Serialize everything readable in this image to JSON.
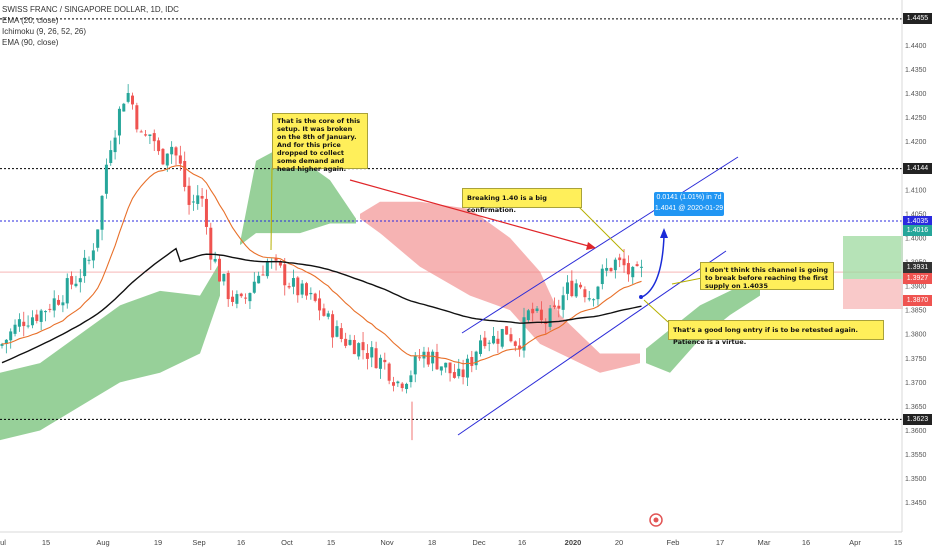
{
  "legend": {
    "title": "SWISS FRANC / SINGAPORE DOLLAR, 1D, IDC",
    "lines": [
      "EMA (20, close)",
      "Ichimoku (9, 26, 52, 26)",
      "EMA (90, close)"
    ]
  },
  "colors": {
    "up": "#26a69a",
    "down": "#ef5350",
    "ema20": "#e8702a",
    "ema90": "#111111",
    "cloud_bull": "#7dc47f",
    "cloud_bear": "#f4a0a0",
    "channel": "#2b2bd8",
    "note_bg": "#ffef5a",
    "supply": "#2a2adf"
  },
  "chart_data": {
    "type": "candlestick",
    "yrange": [
      1.341,
      1.4465
    ],
    "x_tick_labels": [
      "ul",
      "15",
      "Aug",
      "19",
      "Sep",
      "16",
      "Oct",
      "15",
      "Nov",
      "18",
      "Dec",
      "16",
      "2020",
      "20",
      "Feb",
      "17",
      "Mar",
      "16",
      "Apr",
      "15"
    ],
    "y_tick_labels": [
      "1.4455",
      "1.4400",
      "1.4350",
      "1.4300",
      "1.4250",
      "1.4200",
      "1.4150",
      "1.4100",
      "1.4050",
      "1.4000",
      "1.3950",
      "1.3900",
      "1.3850",
      "1.3800",
      "1.3750",
      "1.3700",
      "1.3650",
      "1.3600",
      "1.3550",
      "1.3500",
      "1.3450"
    ],
    "horizontal_levels": [
      {
        "price": 1.4455,
        "label": "1.4455",
        "style": "dotted",
        "color": "#000000"
      },
      {
        "price": 1.4144,
        "label": "1.4144",
        "style": "dotted",
        "color": "#000000"
      },
      {
        "price": 1.4035,
        "label": "1.4035",
        "style": "dotted",
        "color": "#2a2adf"
      },
      {
        "price": 1.3623,
        "label": "1.3623",
        "style": "dotted",
        "color": "#000000"
      }
    ],
    "price_badges": [
      {
        "price": 1.4035,
        "label": "1.4035",
        "color": "#2a2adf"
      },
      {
        "price": 1.4016,
        "label": "1.4016",
        "color": "#26a69a"
      },
      {
        "price": 1.3931,
        "label": "1.3931",
        "color": "#333333"
      },
      {
        "price": 1.3927,
        "label": "1.3927",
        "color": "#ef5350"
      },
      {
        "price": 1.387,
        "label": "1.3870",
        "color": "#ef5350"
      }
    ],
    "measure": {
      "line1": "0.0141 (1.01%) in 7d",
      "line2": "1.4041 @ 2020-01-29"
    },
    "annotations": [
      "That is the core of this setup. It was broken on the 8th of January. And for this price dropped to collect some demand and head higher again.",
      "Breaking 1.40 is a big confirmation.",
      "I don't think this channel is going to break before reaching the first supply on 1.4035",
      "That's a good long entry if is to be retested again. Patience is a virtue."
    ]
  }
}
